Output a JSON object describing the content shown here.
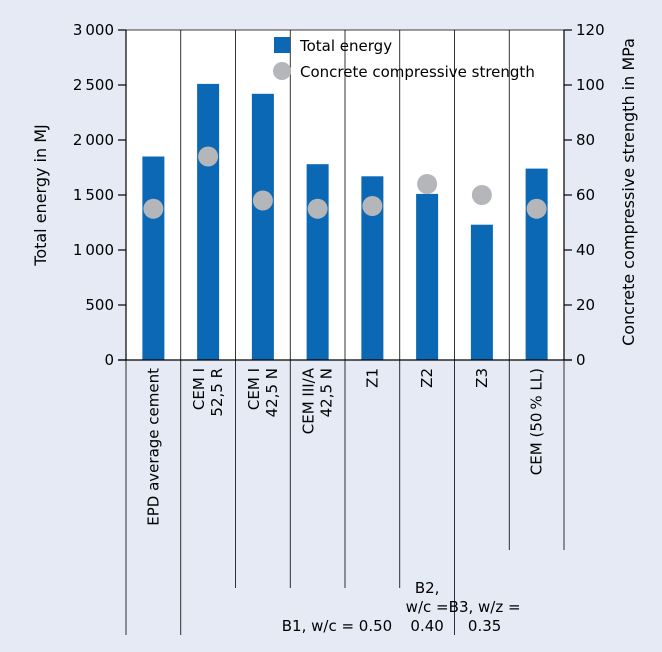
{
  "chart_data": {
    "type": "bar",
    "title": "",
    "categories": [
      [
        "EPD average cement"
      ],
      [
        "CEM I",
        "52,5 R"
      ],
      [
        "CEM I",
        "42,5 N"
      ],
      [
        "CEM III/A",
        "42,5 N"
      ],
      [
        "Z1"
      ],
      [
        "Z2"
      ],
      [
        "Z3"
      ],
      [
        "CEM (50 % LL)"
      ]
    ],
    "series": [
      {
        "name": "Total energy",
        "type": "bar",
        "axis": "left",
        "color": "#0a68b4",
        "values": [
          1850,
          2510,
          2420,
          1780,
          1670,
          1510,
          1230,
          1740
        ]
      },
      {
        "name": "Concrete compressive strength",
        "type": "scatter",
        "axis": "right",
        "color": "#b4b6ba",
        "values": [
          55,
          74,
          58,
          55,
          56,
          64,
          60,
          55
        ]
      }
    ],
    "ylabel": "Total energy in MJ",
    "ylim": [
      0,
      3000
    ],
    "yticks": [
      "0",
      "500",
      "1 000",
      "1 500",
      "2 000",
      "2 500",
      "3 000"
    ],
    "y2label": "Concrete compressive strength in  MPa",
    "y2lim": [
      0,
      120
    ],
    "y2ticks": [
      "0",
      "20",
      "40",
      "60",
      "80",
      "100",
      "120"
    ],
    "legend_position": "top-right",
    "groups": [
      {
        "label": [
          "B1, w/c = 0.50"
        ]
      },
      {
        "label": [
          "B2,",
          "w/c =",
          "0.40"
        ]
      },
      {
        "label": [
          "B3, w/z =",
          "0.35"
        ]
      }
    ]
  }
}
